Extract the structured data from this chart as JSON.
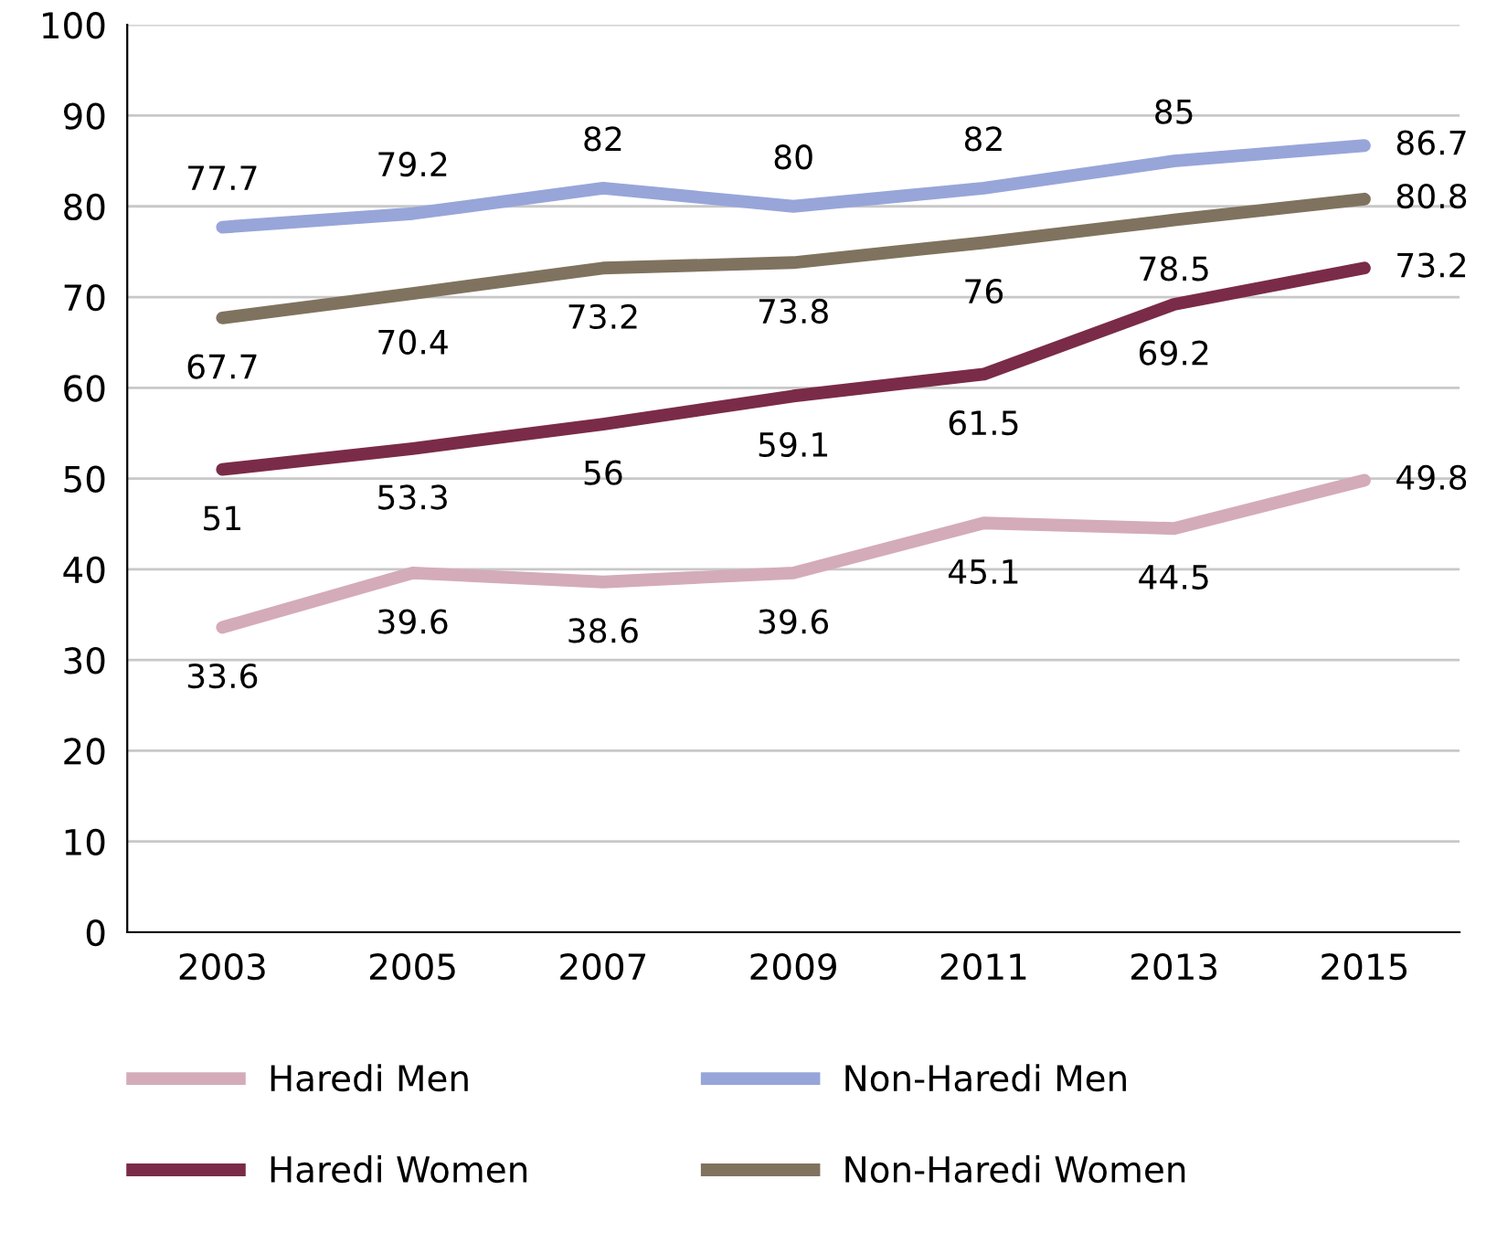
{
  "chart_data": {
    "type": "line",
    "categories": [
      "2003",
      "2005",
      "2007",
      "2009",
      "2011",
      "2013",
      "2015"
    ],
    "series": [
      {
        "name": "Haredi Men",
        "color": "#d4abb9",
        "values": [
          33.6,
          39.6,
          38.6,
          39.6,
          45.1,
          44.5,
          49.8
        ]
      },
      {
        "name": "Haredi Women",
        "color": "#7a2b48",
        "values": [
          51,
          53.3,
          56,
          59.1,
          61.5,
          69.2,
          73.2
        ]
      },
      {
        "name": "Non-Haredi Men",
        "color": "#98a5d9",
        "values": [
          77.7,
          79.2,
          82,
          80,
          82,
          85,
          86.7
        ]
      },
      {
        "name": "Non-Haredi Women",
        "color": "#7f735f",
        "values": [
          67.7,
          70.4,
          73.2,
          73.8,
          76,
          78.5,
          80.8
        ]
      }
    ],
    "ylim": [
      0,
      100
    ],
    "yticks": [
      0,
      10,
      20,
      30,
      40,
      50,
      60,
      70,
      80,
      90,
      100
    ],
    "grid": "y",
    "legend": "bottom",
    "data_labels": true,
    "marker": "none",
    "line_style": "solid"
  }
}
